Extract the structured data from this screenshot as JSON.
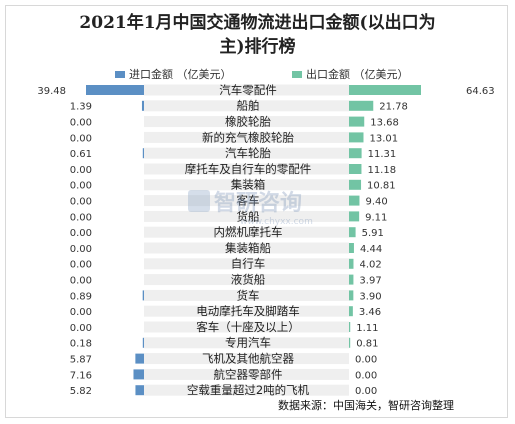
{
  "title_line1": "2021年1月中国交通物流进出口金额(以出口为",
  "title_line2": "主)排行榜",
  "source": "数据来源：中国海关，智研咨询整理",
  "watermark": {
    "name": "智研咨询",
    "url": "www.chyxx.com"
  },
  "colors": {
    "import": "#5b8fc4",
    "export": "#72c4a4",
    "row_band": "#efefef"
  },
  "chart_data": {
    "type": "bar",
    "title": "2021年1月中国交通物流进出口金额(以出口为主)排行榜",
    "categories": [
      "汽车零配件",
      "船舶",
      "橡胶轮胎",
      "新的充气橡胶轮胎",
      "汽车轮胎",
      "摩托车及自行车的零配件",
      "集装箱",
      "客车",
      "货船",
      "内燃机摩托车",
      "集装箱船",
      "自行车",
      "液货船",
      "货车",
      "电动摩托车及脚踏车",
      "客车（十座及以上）",
      "专用汽车",
      "飞机及其他航空器",
      "航空器零部件",
      "空载重量超过2吨的飞机"
    ],
    "series": [
      {
        "name": "进口金额 （亿美元）",
        "values": [
          39.48,
          1.39,
          0.0,
          0.0,
          0.61,
          0.0,
          0.0,
          0.0,
          0.0,
          0.0,
          0.0,
          0.0,
          0.0,
          0.89,
          0.0,
          0.0,
          0.18,
          5.87,
          7.16,
          5.82
        ],
        "labels": [
          "39.48",
          "1.39",
          "0.00",
          "0.00",
          "0.61",
          "0.00",
          "0.00",
          "0.00",
          "0.00",
          "0.00",
          "0.00",
          "0.00",
          "0.00",
          "0.89",
          "0.00",
          "0.00",
          "0.18",
          "5.87",
          "7.16",
          "5.82"
        ]
      },
      {
        "name": "出口金额 （亿美元）",
        "values": [
          64.63,
          21.78,
          13.68,
          13.01,
          11.31,
          11.18,
          10.81,
          9.4,
          9.11,
          5.91,
          4.44,
          4.02,
          3.97,
          3.9,
          3.46,
          1.11,
          0.81,
          0.0,
          0.0,
          0.0
        ],
        "labels": [
          "64.63",
          "21.78",
          "13.68",
          "13.01",
          "11.31",
          "11.18",
          "10.81",
          "9.40",
          "9.11",
          "5.91",
          "4.44",
          "4.02",
          "3.97",
          "3.90",
          "3.46",
          "1.11",
          "0.81",
          "0.00",
          "0.00",
          "0.00"
        ]
      }
    ],
    "legend_position": "top"
  }
}
